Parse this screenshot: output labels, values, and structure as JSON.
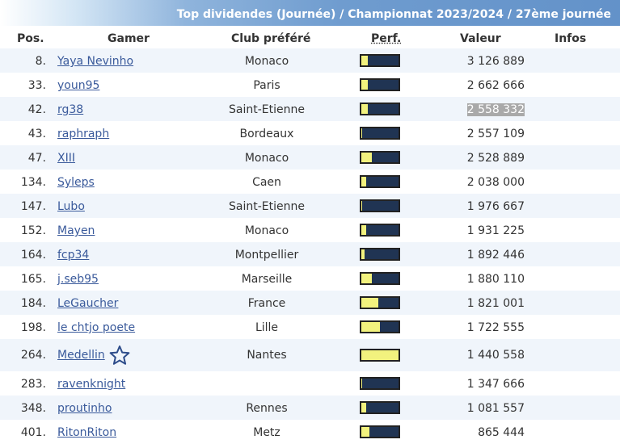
{
  "title": "Top dividendes (Journée) / Championnat 2023/2024 / 27ème journée",
  "columns": {
    "pos": "Pos.",
    "gamer": "Gamer",
    "club": "Club préféré",
    "perf": "Perf.",
    "value": "Valeur",
    "infos": "Infos"
  },
  "colors": {
    "perf_fill": "#f2f27e",
    "perf_bg": "#203453",
    "link": "#3a5a9b",
    "row_alt": "#f0f5fb"
  },
  "rows": [
    {
      "pos": "8.",
      "gamer": "Yaya Nevinho",
      "club": "Monaco",
      "perf": 0.18,
      "value": "3 126 889"
    },
    {
      "pos": "33.",
      "gamer": "youn95",
      "club": "Paris",
      "perf": 0.17,
      "value": "2 662 666"
    },
    {
      "pos": "42.",
      "gamer": "rg38",
      "club": "Saint-Etienne",
      "perf": 0.17,
      "value": "2 558 332",
      "selected": true
    },
    {
      "pos": "43.",
      "gamer": "raphraph",
      "club": "Bordeaux",
      "perf": 0.03,
      "value": "2 557 109"
    },
    {
      "pos": "47.",
      "gamer": "XIII",
      "club": "Monaco",
      "perf": 0.28,
      "value": "2 528 889"
    },
    {
      "pos": "134.",
      "gamer": "Syleps",
      "club": "Caen",
      "perf": 0.12,
      "value": "2 038 000"
    },
    {
      "pos": "147.",
      "gamer": "Lubo",
      "club": "Saint-Etienne",
      "perf": 0.03,
      "value": "1 976 667"
    },
    {
      "pos": "152.",
      "gamer": "Mayen",
      "club": "Monaco",
      "perf": 0.12,
      "value": "1 931 225"
    },
    {
      "pos": "164.",
      "gamer": "fcp34",
      "club": "Montpellier",
      "perf": 0.08,
      "value": "1 892 446"
    },
    {
      "pos": "165.",
      "gamer": "j.seb95",
      "club": "Marseille",
      "perf": 0.28,
      "value": "1 880 110"
    },
    {
      "pos": "184.",
      "gamer": "LeGaucher",
      "club": "France",
      "perf": 0.46,
      "value": "1 821 001"
    },
    {
      "pos": "198.",
      "gamer": "le chtjo poete",
      "club": "Lille",
      "perf": 0.5,
      "value": "1 722 555"
    },
    {
      "pos": "264.",
      "gamer": "Medellin",
      "club": "Nantes",
      "perf": 1.0,
      "value": "1 440 558",
      "star": "star-outline-icon"
    },
    {
      "pos": "283.",
      "gamer": "ravenknight",
      "club": "",
      "perf": 0.03,
      "value": "1 347 666"
    },
    {
      "pos": "348.",
      "gamer": "proutinho",
      "club": "Rennes",
      "perf": 0.14,
      "value": "1 081 557"
    },
    {
      "pos": "401.",
      "gamer": "RitonRiton",
      "club": "Metz",
      "perf": 0.22,
      "value": "865 444"
    }
  ]
}
